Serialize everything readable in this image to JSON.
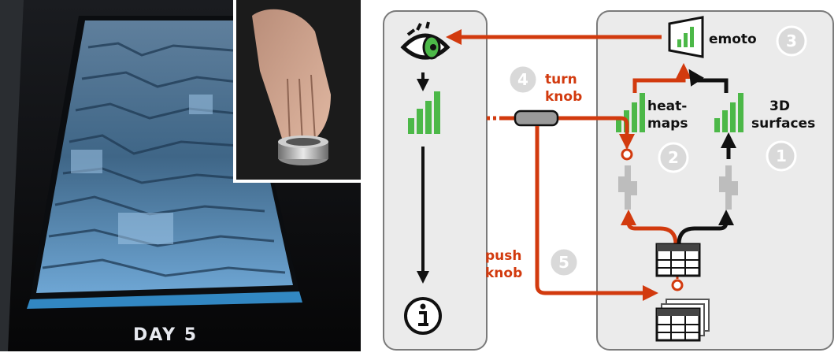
{
  "photo": {
    "day_label": "DAY  5",
    "icons": [
      "3d-surface-display",
      "rotary-knob-with-hand"
    ]
  },
  "diagram": {
    "labels": {
      "emoto": "emoto",
      "turn_1": "turn",
      "turn_2": "knob",
      "heat_1": "heat-",
      "heat_2": "maps",
      "surf_1": "3D",
      "surf_2": "surfaces",
      "push_1": "push",
      "push_2": "knob"
    },
    "steps": {
      "s1": "1",
      "s2": "2",
      "s3": "3",
      "s4": "4",
      "s5": "5"
    },
    "colors": {
      "accent": "#d23a0e",
      "bar_green": "#4cb848",
      "panel_bg": "#ebebeb",
      "panel_border": "#7a7a7a",
      "circle_bg": "#d9d9d9",
      "dark": "#111111"
    },
    "icons": [
      "eye-icon",
      "bar-chart-icon",
      "info-icon",
      "screen-icon",
      "table-icon",
      "table-stack-icon",
      "knob-icon"
    ]
  }
}
